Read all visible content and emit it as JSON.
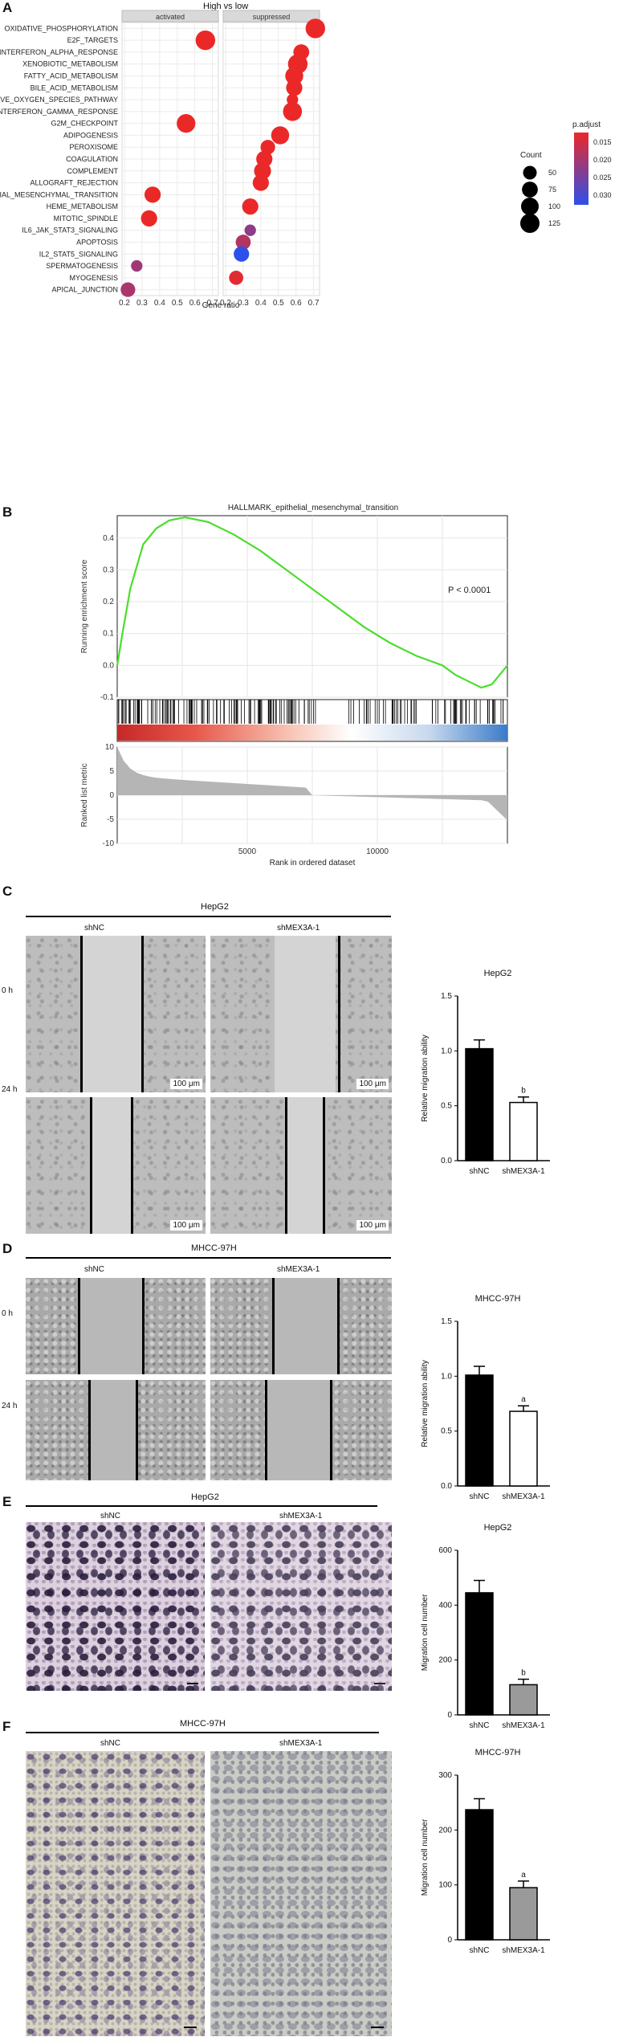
{
  "panels": {
    "A": {
      "label": "A",
      "header": "High vs low",
      "facet_left": "activated",
      "facet_right": "suppressed",
      "xlabel": "Gene ratio",
      "left_ticks": [
        "0.2",
        "0.3",
        "0.4",
        "0.5",
        "0.6",
        "0.7"
      ],
      "right_ticks": [
        "0.2",
        "0.3",
        "0.4",
        "0.5",
        "0.6",
        "0.7"
      ],
      "legend_count_title": "Count",
      "legend_count": [
        "50",
        "75",
        "100",
        "125"
      ],
      "legend_padj_title": "p.adjust",
      "legend_padj": [
        "0.015",
        "0.020",
        "0.025",
        "0.030"
      ],
      "pathways": [
        "OXIDATIVE_PHOSPHORYLATION",
        "E2F_TARGETS",
        "INTERFERON_ALPHA_RESPONSE",
        "XENOBIOTIC_METABOLISM",
        "FATTY_ACID_METABOLISM",
        "BILE_ACID_METABOLISM",
        "REACTIVE_OXYGEN_SPECIES_PATHWAY",
        "INTERFERON_GAMMA_RESPONSE",
        "G2M_CHECKPOINT",
        "ADIPOGENESIS",
        "PEROXISOME",
        "COAGULATION",
        "COMPLEMENT",
        "ALLOGRAFT_REJECTION",
        "EPITHELIAL_MESENCHYMAL_TRANSITION",
        "HEME_METABOLISM",
        "MITOTIC_SPINDLE",
        "IL6_JAK_STAT3_SIGNALING",
        "APOPTOSIS",
        "IL2_STAT5_SIGNALING",
        "SPERMATOGENESIS",
        "MYOGENESIS",
        "APICAL_JUNCTION"
      ]
    },
    "B": {
      "label": "B",
      "title": "HALLMARK_epithelial_mesenchymal_transition",
      "ylabel_top": "Running enrichment score",
      "yticks_top": [
        "0.4",
        "0.3",
        "0.2",
        "0.1",
        "0.0",
        "-0.1"
      ],
      "pvalue": "P < 0.0001",
      "ylabel_bottom": "Ranked list metric",
      "yticks_bottom": [
        "10",
        "5",
        "0",
        "-5",
        "-10"
      ],
      "xticks": [
        "5000",
        "10000"
      ],
      "xlabel": "Rank in ordered dataset"
    },
    "C": {
      "label": "C",
      "cell_line": "HepG2",
      "col1": "shNC",
      "col2": "shMEX3A-1",
      "row1": "0 h",
      "row2": "24 h",
      "scale": "100 μm",
      "chart_title": "HepG2",
      "ylabel": "Relative migration ability",
      "yticks": [
        "1.5",
        "1.0",
        "0.5",
        "0.0"
      ],
      "sig": "b"
    },
    "D": {
      "label": "D",
      "cell_line": "MHCC-97H",
      "col1": "shNC",
      "col2": "shMEX3A-1",
      "row1": "0 h",
      "row2": "24 h",
      "chart_title": "MHCC-97H",
      "ylabel": "Relative migration ability",
      "yticks": [
        "1.5",
        "1.0",
        "0.5",
        "0.0"
      ],
      "sig": "a"
    },
    "E": {
      "label": "E",
      "cell_line": "HepG2",
      "col1": "shNC",
      "col2": "shMEX3A-1",
      "chart_title": "HepG2",
      "ylabel": "Migration cell number",
      "yticks": [
        "600",
        "400",
        "200",
        "0"
      ],
      "sig": "b"
    },
    "F": {
      "label": "F",
      "cell_line": "MHCC-97H",
      "col1": "shNC",
      "col2": "shMEX3A-1",
      "chart_title": "MHCC-97H",
      "ylabel": "Migration cell number",
      "yticks": [
        "300",
        "200",
        "100",
        "0"
      ],
      "sig": "a"
    }
  },
  "chart_data": [
    {
      "type": "scatter",
      "title": "High vs low",
      "xlabel": "Gene ratio",
      "facets": [
        "activated",
        "suppressed"
      ],
      "points": [
        {
          "pathway": "OXIDATIVE_PHOSPHORYLATION",
          "facet": "suppressed",
          "x": 0.71,
          "count": 130,
          "p_adjust": 0.012
        },
        {
          "pathway": "E2F_TARGETS",
          "facet": "activated",
          "x": 0.66,
          "count": 130,
          "p_adjust": 0.012
        },
        {
          "pathway": "INTERFERON_ALPHA_RESPONSE",
          "facet": "suppressed",
          "x": 0.63,
          "count": 75,
          "p_adjust": 0.012
        },
        {
          "pathway": "XENOBIOTIC_METABOLISM",
          "facet": "suppressed",
          "x": 0.61,
          "count": 130,
          "p_adjust": 0.012
        },
        {
          "pathway": "FATTY_ACID_METABOLISM",
          "facet": "suppressed",
          "x": 0.59,
          "count": 105,
          "p_adjust": 0.012
        },
        {
          "pathway": "BILE_ACID_METABOLISM",
          "facet": "suppressed",
          "x": 0.59,
          "count": 80,
          "p_adjust": 0.012
        },
        {
          "pathway": "REACTIVE_OXYGEN_SPECIES_PATHWAY",
          "facet": "suppressed",
          "x": 0.58,
          "count": 30,
          "p_adjust": 0.012
        },
        {
          "pathway": "INTERFERON_GAMMA_RESPONSE",
          "facet": "suppressed",
          "x": 0.58,
          "count": 120,
          "p_adjust": 0.012
        },
        {
          "pathway": "G2M_CHECKPOINT",
          "facet": "activated",
          "x": 0.55,
          "count": 115,
          "p_adjust": 0.012
        },
        {
          "pathway": "ADIPOGENESIS",
          "facet": "suppressed",
          "x": 0.51,
          "count": 105,
          "p_adjust": 0.012
        },
        {
          "pathway": "PEROXISOME",
          "facet": "suppressed",
          "x": 0.44,
          "count": 60,
          "p_adjust": 0.012
        },
        {
          "pathway": "COAGULATION",
          "facet": "suppressed",
          "x": 0.42,
          "count": 80,
          "p_adjust": 0.012
        },
        {
          "pathway": "COMPLEMENT",
          "facet": "suppressed",
          "x": 0.41,
          "count": 90,
          "p_adjust": 0.012
        },
        {
          "pathway": "ALLOGRAFT_REJECTION",
          "facet": "suppressed",
          "x": 0.4,
          "count": 80,
          "p_adjust": 0.012
        },
        {
          "pathway": "EPITHELIAL_MESENCHYMAL_TRANSITION",
          "facet": "activated",
          "x": 0.36,
          "count": 80,
          "p_adjust": 0.012
        },
        {
          "pathway": "HEME_METABOLISM",
          "facet": "suppressed",
          "x": 0.34,
          "count": 80,
          "p_adjust": 0.012
        },
        {
          "pathway": "MITOTIC_SPINDLE",
          "facet": "activated",
          "x": 0.34,
          "count": 80,
          "p_adjust": 0.012
        },
        {
          "pathway": "IL6_JAK_STAT3_SIGNALING",
          "facet": "suppressed",
          "x": 0.34,
          "count": 30,
          "p_adjust": 0.022
        },
        {
          "pathway": "APOPTOSIS",
          "facet": "suppressed",
          "x": 0.3,
          "count": 65,
          "p_adjust": 0.018
        },
        {
          "pathway": "IL2_STAT5_SIGNALING",
          "facet": "suppressed",
          "x": 0.29,
          "count": 70,
          "p_adjust": 0.032
        },
        {
          "pathway": "SPERMATOGENESIS",
          "facet": "activated",
          "x": 0.27,
          "count": 30,
          "p_adjust": 0.02
        },
        {
          "pathway": "MYOGENESIS",
          "facet": "suppressed",
          "x": 0.26,
          "count": 55,
          "p_adjust": 0.013
        },
        {
          "pathway": "APICAL_JUNCTION",
          "facet": "activated",
          "x": 0.22,
          "count": 60,
          "p_adjust": 0.019
        }
      ]
    },
    {
      "type": "line",
      "title": "HALLMARK_epithelial_mesenchymal_transition",
      "xlabel": "Rank in ordered dataset",
      "ylabel": "Running enrichment score",
      "xlim": [
        0,
        15000
      ],
      "ylim": [
        -0.1,
        0.47
      ],
      "x": [
        0,
        200,
        500,
        1000,
        1500,
        2000,
        2600,
        3500,
        4500,
        5500,
        6500,
        7500,
        8500,
        9500,
        10500,
        11500,
        12500,
        13000,
        13500,
        14000,
        14400,
        14700,
        15000
      ],
      "values": [
        0.0,
        0.1,
        0.24,
        0.38,
        0.43,
        0.455,
        0.465,
        0.45,
        0.41,
        0.36,
        0.3,
        0.24,
        0.18,
        0.12,
        0.07,
        0.03,
        0.0,
        -0.03,
        -0.05,
        -0.07,
        -0.06,
        -0.03,
        0.0
      ]
    },
    {
      "type": "bar",
      "title": "HepG2",
      "ylabel": "Relative migration ability",
      "categories": [
        "shNC",
        "shMEX3A-1"
      ],
      "values": [
        1.02,
        0.53
      ],
      "errors": [
        0.08,
        0.05
      ],
      "ylim": [
        0,
        1.5
      ]
    },
    {
      "type": "bar",
      "title": "MHCC-97H",
      "ylabel": "Relative migration ability",
      "categories": [
        "shNC",
        "shMEX3A-1"
      ],
      "values": [
        1.01,
        0.68
      ],
      "errors": [
        0.08,
        0.05
      ],
      "ylim": [
        0,
        1.5
      ]
    },
    {
      "type": "bar",
      "title": "HepG2",
      "ylabel": "Migration cell number",
      "categories": [
        "shNC",
        "shMEX3A-1"
      ],
      "values": [
        445,
        110
      ],
      "errors": [
        45,
        20
      ],
      "ylim": [
        0,
        600
      ]
    },
    {
      "type": "bar",
      "title": "MHCC-97H",
      "ylabel": "Migration cell number",
      "categories": [
        "shNC",
        "shMEX3A-1"
      ],
      "values": [
        237,
        95
      ],
      "errors": [
        20,
        12
      ],
      "ylim": [
        0,
        300
      ]
    }
  ]
}
